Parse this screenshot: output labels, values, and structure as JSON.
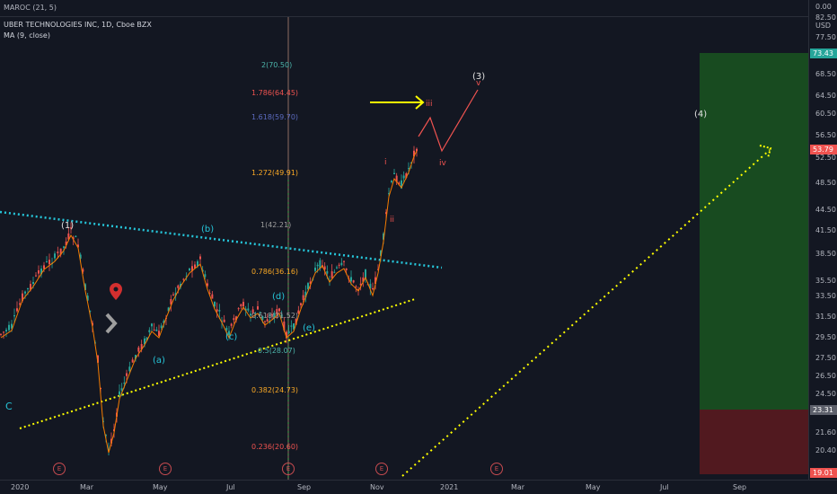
{
  "indicator": {
    "label": "MAROC (21, 5)",
    "zero_value": "0.00",
    "top_value": "82.50"
  },
  "legend": {
    "symbol_line": "UBER TECHNOLOGIES INC, 1D, Cboe BZX",
    "ma_line": "MA (9, close)"
  },
  "price_axis": {
    "currency": "USD",
    "ticks": [
      "77.50",
      "73.43",
      "68.50",
      "64.50",
      "60.50",
      "56.50",
      "53.79",
      "52.50",
      "48.50",
      "44.50",
      "41.50",
      "38.50",
      "35.50",
      "33.50",
      "31.50",
      "29.50",
      "27.50",
      "26.50",
      "24.50",
      "23.31",
      "21.60",
      "20.40",
      "19.01"
    ],
    "tick_values": [
      77.5,
      68.5,
      64.5,
      60.5,
      56.5,
      52.5,
      48.5,
      44.5,
      41.5,
      38.5,
      35.5,
      33.5,
      31.5,
      29.5,
      27.5,
      26.5,
      24.5,
      21.6,
      20.4
    ],
    "tags": [
      {
        "label": "73.43",
        "color": "#26a69a"
      },
      {
        "label": "53.79",
        "color": "#ef5350"
      },
      {
        "label": "23.31",
        "color": "#5d606b"
      },
      {
        "label": "19.01",
        "color": "#ef5350"
      }
    ]
  },
  "time_axis": {
    "ticks": [
      "2020",
      "Mar",
      "May",
      "Jul",
      "Sep",
      "Nov",
      "2021",
      "Mar",
      "May",
      "Jul",
      "Sep"
    ]
  },
  "fib_levels": [
    {
      "label": "2(70.50)",
      "color": "#4db6ac"
    },
    {
      "label": "1.786(64.45)",
      "color": "#ef5350"
    },
    {
      "label": "1.618(59.70)",
      "color": "#5c6bc0"
    },
    {
      "label": "1.272(49.91)",
      "color": "#f9a825"
    },
    {
      "label": "1(42.21)",
      "color": "#9e9e9e"
    },
    {
      "label": "0.786(36.16)",
      "color": "#f9a825"
    },
    {
      "label": "0.618(31.52)",
      "color": "#9e9e9e"
    },
    {
      "label": "0.5(28.07)",
      "color": "#4db6ac"
    },
    {
      "label": "0.382(24.73)",
      "color": "#f9a825"
    },
    {
      "label": "0.236(20.60)",
      "color": "#ef5350"
    }
  ],
  "wave_labels": {
    "a": "(a)",
    "b": "(b)",
    "c": "(c)",
    "d": "(d)",
    "e": "(e)",
    "wave1_paren": "(1)",
    "wave3": "(3)",
    "wave4": "(4)",
    "i": "i",
    "ii": "ii",
    "iii": "iii",
    "iv": "iv",
    "v": "v",
    "corner_c": "C"
  },
  "earnings_marker": "E",
  "colors": {
    "background": "#131722",
    "teal_line": "#26c6da",
    "yellow_line": "#ffff00",
    "ma": "#f57c00",
    "up": "#26a69a",
    "down": "#ef5350",
    "target_zone": "#1b5e20",
    "stop_zone": "#5d1a1f"
  }
}
